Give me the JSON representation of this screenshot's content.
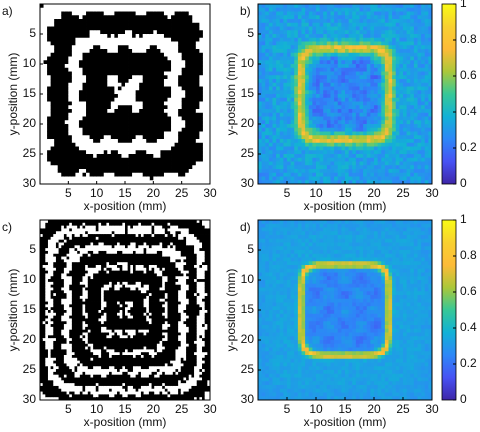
{
  "chart_data": [
    {
      "type": "image",
      "panel_label": "a)",
      "colormap": "binary",
      "xlabel": "x-position (mm)",
      "ylabel": "y-position (mm)",
      "xlim": [
        0,
        30
      ],
      "ylim": [
        30,
        0
      ],
      "xticks": [
        5,
        10,
        15,
        20,
        25,
        30
      ],
      "yticks": [
        5,
        10,
        15,
        20,
        25,
        30
      ]
    },
    {
      "type": "image",
      "panel_label": "b)",
      "colormap": "parula",
      "xlabel": "x-position (mm)",
      "ylabel": "y-position (mm)",
      "xlim": [
        0,
        30
      ],
      "ylim": [
        30,
        0
      ],
      "xticks": [
        5,
        10,
        15,
        20,
        25,
        30
      ],
      "yticks": [
        5,
        10,
        15,
        20,
        25,
        30
      ],
      "clim": [
        0,
        1
      ],
      "cticks": [
        0,
        0.2,
        0.4,
        0.6,
        0.8,
        1
      ]
    },
    {
      "type": "image",
      "panel_label": "c)",
      "colormap": "binary",
      "xlabel": "x-position (mm)",
      "ylabel": "y-position (mm)",
      "xlim": [
        0,
        30
      ],
      "ylim": [
        30,
        0
      ],
      "xticks": [
        5,
        10,
        15,
        20,
        25,
        30
      ],
      "yticks": [
        5,
        10,
        15,
        20,
        25,
        30
      ]
    },
    {
      "type": "image",
      "panel_label": "d)",
      "colormap": "parula",
      "xlabel": "x-position (mm)",
      "ylabel": "y-position (mm)",
      "xlim": [
        0,
        30
      ],
      "ylim": [
        30,
        0
      ],
      "xticks": [
        5,
        10,
        15,
        20,
        25,
        30
      ],
      "yticks": [
        5,
        10,
        15,
        20,
        25,
        30
      ],
      "clim": [
        0,
        1
      ],
      "cticks": [
        0,
        0.2,
        0.4,
        0.6,
        0.8,
        1
      ]
    }
  ]
}
